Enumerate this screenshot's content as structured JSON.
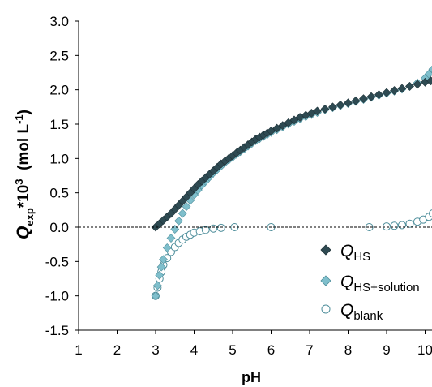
{
  "chart_data": {
    "type": "scatter",
    "xlabel": "pH",
    "ylabel": {
      "main": "Q",
      "sub": "exp",
      "mid": "*10",
      "sup": "3",
      "unit_open": "  (mol L",
      "unit_sup": "-1",
      "unit_close": ")"
    },
    "xlim": [
      1,
      10.3
    ],
    "ylim": [
      -1.5,
      3.0
    ],
    "x_ticks": [
      1,
      2,
      3,
      4,
      5,
      6,
      7,
      8,
      9,
      10
    ],
    "x_tick_labels": [
      "1",
      "2",
      "3",
      "4",
      "5",
      "6",
      "7",
      "8",
      "9",
      "10"
    ],
    "y_ticks": [
      3.0,
      2.5,
      2.0,
      1.5,
      1.0,
      0.5,
      0.0,
      -0.5,
      -1.0,
      -1.5
    ],
    "y_tick_labels": [
      "3.0",
      "2.5",
      "2.0",
      "1.5",
      "1.0",
      "0.5",
      "0.0",
      "-0.5",
      "-1.0",
      "-1.5"
    ],
    "reference_line": {
      "y": 0,
      "style": "dashed"
    },
    "grid": false,
    "legend_position": "bottom-right",
    "series": [
      {
        "name": "HS",
        "legend_main": "Q",
        "legend_sub": "HS",
        "marker": "diamond",
        "fill": "#2e4a52",
        "stroke": "#1f3339",
        "x": [
          3.0,
          3.1,
          3.2,
          3.3,
          3.4,
          3.5,
          3.6,
          3.7,
          3.8,
          3.9,
          4.0,
          4.1,
          4.2,
          4.3,
          4.4,
          4.5,
          4.6,
          4.7,
          4.8,
          4.9,
          5.0,
          5.1,
          5.2,
          5.3,
          5.4,
          5.5,
          5.6,
          5.7,
          5.8,
          5.9,
          6.0,
          6.15,
          6.3,
          6.45,
          6.6,
          6.75,
          6.9,
          7.05,
          7.2,
          7.4,
          7.6,
          7.8,
          8.0,
          8.2,
          8.4,
          8.6,
          8.8,
          9.0,
          9.2,
          9.4,
          9.6,
          9.8,
          10.0,
          10.15,
          10.3
        ],
        "y": [
          0.0,
          0.05,
          0.1,
          0.15,
          0.2,
          0.26,
          0.32,
          0.38,
          0.44,
          0.5,
          0.56,
          0.62,
          0.67,
          0.72,
          0.77,
          0.82,
          0.87,
          0.92,
          0.96,
          1.0,
          1.04,
          1.08,
          1.12,
          1.16,
          1.2,
          1.24,
          1.28,
          1.31,
          1.34,
          1.37,
          1.4,
          1.44,
          1.48,
          1.52,
          1.56,
          1.6,
          1.63,
          1.66,
          1.69,
          1.72,
          1.75,
          1.78,
          1.81,
          1.84,
          1.87,
          1.9,
          1.93,
          1.96,
          1.99,
          2.02,
          2.05,
          2.08,
          2.11,
          2.13,
          2.15
        ]
      },
      {
        "name": "HS+solution",
        "legend_main": "Q",
        "legend_sub": "HS+solution",
        "marker": "diamond",
        "fill": "#7fbfcc",
        "stroke": "#4e8e9b",
        "x": [
          3.0,
          3.05,
          3.1,
          3.15,
          3.2,
          3.3,
          3.4,
          3.5,
          3.6,
          3.7,
          3.8,
          3.9,
          4.0,
          4.1,
          4.2,
          4.3,
          4.4,
          4.5,
          4.6,
          4.7,
          4.8,
          4.9,
          5.0,
          5.1,
          5.2,
          5.3,
          5.4,
          5.5,
          5.6,
          5.7,
          5.8,
          5.9,
          6.0,
          6.15,
          6.3,
          6.45,
          6.6,
          6.75,
          6.9,
          7.05,
          7.2,
          7.4,
          7.6,
          7.8,
          8.0,
          8.2,
          8.4,
          8.6,
          8.8,
          9.0,
          9.2,
          9.4,
          9.6,
          9.8,
          10.0,
          10.1,
          10.2,
          10.3
        ],
        "y": [
          -1.0,
          -0.85,
          -0.7,
          -0.58,
          -0.47,
          -0.3,
          -0.16,
          -0.03,
          0.09,
          0.2,
          0.3,
          0.39,
          0.47,
          0.54,
          0.61,
          0.67,
          0.73,
          0.79,
          0.84,
          0.89,
          0.94,
          0.98,
          1.02,
          1.06,
          1.1,
          1.14,
          1.18,
          1.22,
          1.26,
          1.29,
          1.32,
          1.35,
          1.38,
          1.42,
          1.46,
          1.5,
          1.54,
          1.58,
          1.61,
          1.64,
          1.67,
          1.71,
          1.74,
          1.77,
          1.8,
          1.83,
          1.86,
          1.89,
          1.92,
          1.95,
          1.98,
          2.01,
          2.05,
          2.1,
          2.17,
          2.23,
          2.3,
          2.38
        ]
      },
      {
        "name": "blank",
        "legend_main": "Q",
        "legend_sub": "blank",
        "marker": "circle",
        "fill": "#ffffff",
        "stroke": "#4e8e9b",
        "x": [
          3.0,
          3.05,
          3.1,
          3.15,
          3.2,
          3.3,
          3.4,
          3.5,
          3.6,
          3.7,
          3.8,
          3.9,
          4.0,
          4.15,
          4.3,
          4.5,
          4.7,
          5.05,
          6.0,
          8.55,
          9.0,
          9.2,
          9.4,
          9.6,
          9.8,
          9.95,
          10.1,
          10.2,
          10.3
        ],
        "y": [
          -1.0,
          -0.88,
          -0.75,
          -0.65,
          -0.55,
          -0.45,
          -0.36,
          -0.29,
          -0.23,
          -0.18,
          -0.14,
          -0.11,
          -0.08,
          -0.06,
          -0.04,
          -0.02,
          -0.01,
          0.0,
          0.0,
          0.0,
          0.01,
          0.02,
          0.03,
          0.05,
          0.08,
          0.11,
          0.15,
          0.2,
          0.25
        ]
      }
    ]
  }
}
